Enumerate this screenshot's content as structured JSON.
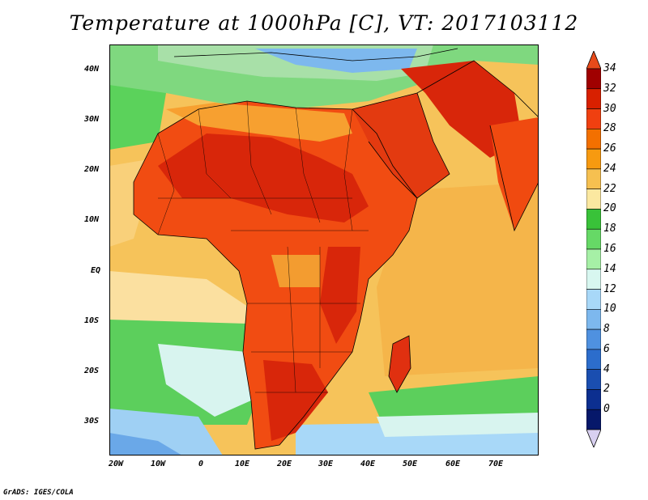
{
  "title": "Temperature at 1000hPa [C], VT: 2017103112",
  "credit": "GrADS: IGES/COLA",
  "lat_labels": [
    "40N",
    "30N",
    "20N",
    "10N",
    "EQ",
    "10S",
    "20S",
    "30S"
  ],
  "lon_labels": [
    "20W",
    "10W",
    "0",
    "10E",
    "20E",
    "30E",
    "40E",
    "50E",
    "60E",
    "70E"
  ],
  "colorbar": {
    "labels": [
      "34",
      "32",
      "30",
      "28",
      "26",
      "24",
      "22",
      "20",
      "18",
      "16",
      "14",
      "12",
      "10",
      "8",
      "6",
      "4",
      "2",
      "0"
    ],
    "colors": [
      "#a00000",
      "#d82000",
      "#f04010",
      "#f37000",
      "#f79a10",
      "#f6c050",
      "#fbe8a0",
      "#39c239",
      "#66d966",
      "#a6f0a6",
      "#d8f7f0",
      "#a8d8f8",
      "#7db8ee",
      "#4f91e0",
      "#2c6dcc",
      "#1a4eb0",
      "#0c2f90",
      "#06186a"
    ],
    "over_color": "#e84a1a",
    "under_color": "#d8d0f0"
  },
  "field": {
    "ocean_colors": {
      "atlantic_south": "#b0ddf5",
      "atlantic_mid": "#6fd06f",
      "tropics": "#f7c25c",
      "indian": "#f5b84a",
      "mediterranean": "#a5e8a5"
    },
    "land_colors": {
      "hot": "#d82a0a",
      "warm": "#f04a10",
      "mild": "#f7a030"
    }
  }
}
